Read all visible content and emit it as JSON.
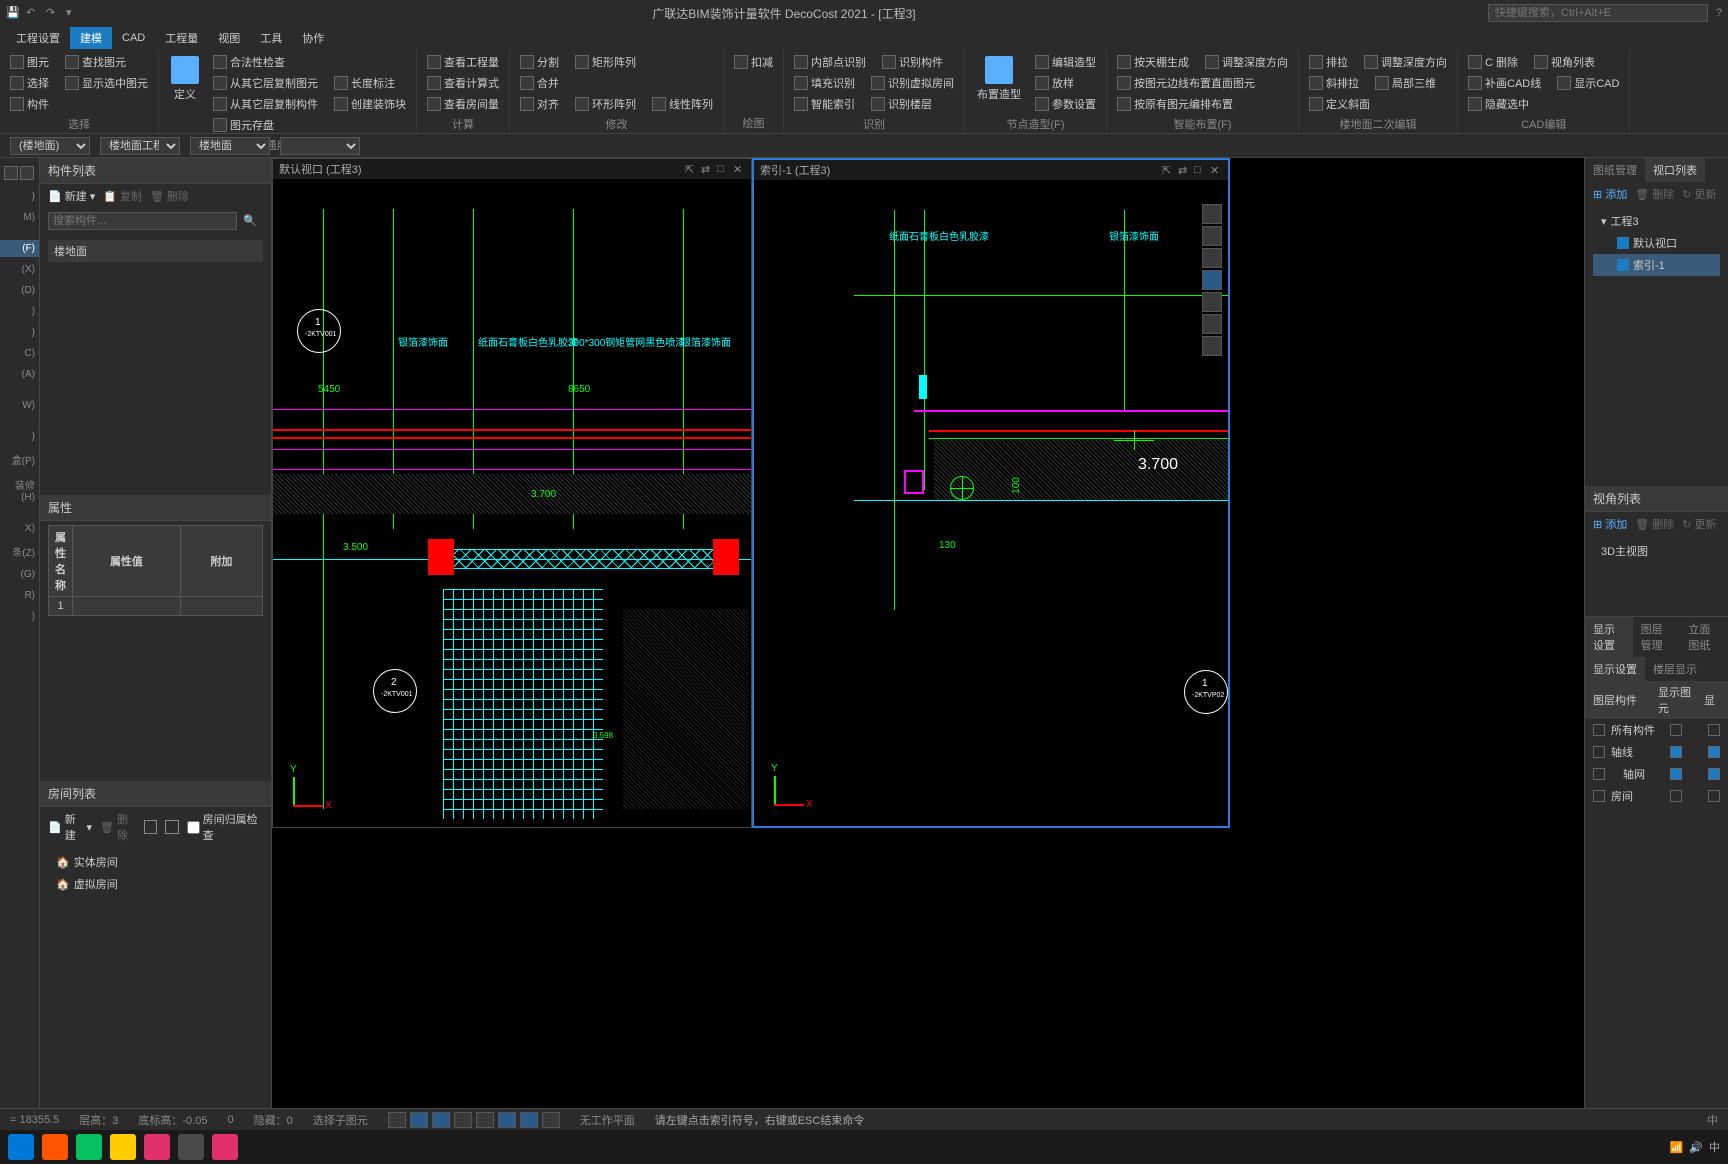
{
  "app": {
    "title": "广联达BIM装饰计量软件 DecoCost 2021 - [工程3]",
    "search_placeholder": "快捷键搜索，Ctrl+Alt+E"
  },
  "menu": [
    "工程设置",
    "建模",
    "CAD",
    "工程量",
    "视图",
    "工具",
    "协作"
  ],
  "menu_active": 1,
  "ribbon": {
    "groups": [
      {
        "label": "选择",
        "items": [
          [
            "图元",
            "查找图元"
          ],
          [
            "选择",
            "显示选中图元"
          ],
          [
            "构件"
          ]
        ]
      },
      {
        "label": "通用操作",
        "big": "定义",
        "items": [
          [
            "合法性检查"
          ],
          [
            "从其它层复制图元",
            "长度标注"
          ],
          [
            "从其它层复制构件",
            "创建装饰块"
          ],
          [
            "图元存盘"
          ]
        ]
      },
      {
        "label": "计算",
        "items": [
          [
            "查看工程量"
          ],
          [
            "查看计算式"
          ],
          [
            "查看房间量"
          ]
        ]
      },
      {
        "label": "修改",
        "items": [
          [
            "分割",
            "矩形阵列"
          ],
          [
            "合并"
          ],
          [
            "对齐",
            "环形阵列",
            "线性阵列"
          ]
        ]
      },
      {
        "label": "绘图",
        "items": [
          [
            "扣减"
          ]
        ]
      },
      {
        "label": "识别",
        "items": [
          [
            "内部点识别",
            "识别构件"
          ],
          [
            "填充识别",
            "识别虚拟房间"
          ],
          [
            "智能索引",
            "识别楼层"
          ]
        ]
      },
      {
        "label": "节点造型(F)",
        "big": "布置造型",
        "items": [
          [
            "编辑造型"
          ],
          [
            "放样"
          ],
          [
            "参数设置"
          ]
        ]
      },
      {
        "label": "智能布置(F)",
        "items": [
          [
            "按天棚生成",
            "调整深度方向"
          ],
          [
            "按图元边线布置直面图元"
          ],
          [
            "按原有图元编排布置"
          ]
        ]
      },
      {
        "label": "楼地面二次编辑",
        "items": [
          [
            "排拉",
            "调整深度方向"
          ],
          [
            "斜排拉",
            "局部三维"
          ],
          [
            "定义斜面"
          ]
        ]
      },
      {
        "label": "CAD编辑",
        "items": [
          [
            "C 删除",
            "视角列表"
          ],
          [
            "补画CAD线",
            "显示CAD"
          ],
          [
            "隐藏选中"
          ]
        ]
      }
    ]
  },
  "selectors": [
    "(楼地面)",
    "楼地面工程",
    "楼地面",
    ""
  ],
  "left_nav": [
    ")",
    "M)",
    "",
    "(F)",
    "(X)",
    "(D)",
    ")",
    ")",
    "C)",
    "(A)",
    "",
    "W)",
    "",
    ")",
    "盒(P)",
    "装修(H)",
    "",
    "X)",
    "条(Z)",
    "(G)",
    "R)",
    ")"
  ],
  "left_nav_sel": 3,
  "component_list": {
    "title": "构件列表",
    "new_btn": "新建",
    "copy_btn": "复制",
    "del_btn": "删除",
    "search_placeholder": "搜索构件...",
    "items": [
      "楼地面"
    ]
  },
  "property": {
    "title": "属性",
    "cols": [
      "属性名称",
      "属性值",
      "附加"
    ],
    "rows": [
      [
        "1",
        "",
        "",
        ""
      ]
    ]
  },
  "room_list": {
    "title": "房间列表",
    "new_btn": "新建",
    "del_btn": "删除",
    "check_btn": "房间归属检查",
    "items": [
      "实体房间",
      "虚拟房间"
    ]
  },
  "viewports": [
    {
      "title": "默认视口 (工程3)",
      "active": false,
      "labels": [
        "银箔漆饰面",
        "纸面石膏板白色乳胶漆",
        "300*300钢矩管网黑色喷漆",
        "银箔漆饰面"
      ],
      "dims": [
        "5450",
        "8650",
        "3.500",
        "3.700",
        "3.598"
      ],
      "marks": [
        {
          "num": "1",
          "code": "-2KTV001"
        },
        {
          "num": "2",
          "code": "-2KTV001"
        }
      ]
    },
    {
      "title": "索引-1 (工程3)",
      "active": true,
      "labels": [
        "纸面石膏板白色乳胶漆",
        "银箔漆饰面"
      ],
      "dims": [
        "3.700",
        "130",
        "100"
      ],
      "marks": [
        {
          "num": "1",
          "code": "-2KTVP02"
        }
      ]
    }
  ],
  "right_panel": {
    "tabs": [
      "图纸管理",
      "视口列表"
    ],
    "tab_active": 1,
    "toolbar": [
      "添加",
      "删除",
      "更新"
    ],
    "tree": {
      "root": "工程3",
      "children": [
        "默认视口",
        "索引-1"
      ]
    },
    "view_list": {
      "title": "视角列表",
      "toolbar": [
        "添加",
        "删除",
        "更新"
      ],
      "items": [
        "3D主视图"
      ]
    },
    "display": {
      "tabs": [
        "显示设置",
        "图层管理",
        "立面图纸"
      ],
      "subtabs": [
        "显示设置",
        "楼层显示"
      ],
      "cols": [
        "图层构件",
        "显示图元",
        "显"
      ],
      "rows": [
        {
          "name": "所有构件",
          "c1": false,
          "c2": false
        },
        {
          "name": "轴线",
          "c1": false,
          "c2": true
        },
        {
          "name": "轴网",
          "c1": true,
          "c2": true,
          "indent": true
        },
        {
          "name": "房间",
          "c1": false,
          "c2": false
        }
      ]
    }
  },
  "statusbar": {
    "coord": "= 18355.5",
    "floor": "层高：3",
    "elev": "底标高：-0.05",
    "zero": "0",
    "hidden": "隐藏：0",
    "mode": "选择子图元",
    "workplane": "无工作平面",
    "hint": "请左键点击索引符号，右键或ESC结束命令"
  },
  "taskbar": {
    "icons": [
      "#0078d7",
      "#ff5500",
      "#07c160",
      "#ffcc00",
      "#e1306c",
      "#4a4a4a",
      "#e1306c"
    ],
    "tray": "中"
  }
}
